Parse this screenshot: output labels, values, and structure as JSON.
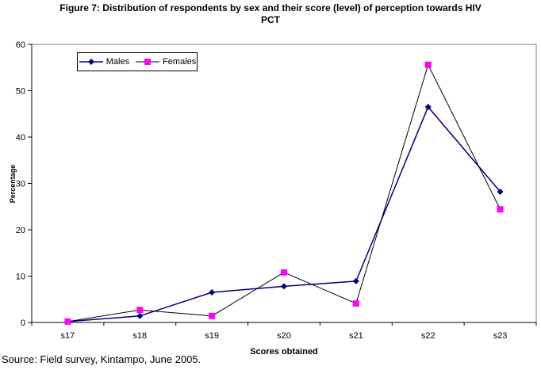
{
  "header": {
    "title_line1": "Figure 7: Distribution of respondents by sex and their score (level) of perception towards HIV",
    "title_line2": "PCT"
  },
  "legend": {
    "males_label": "Males",
    "females_label": "Females"
  },
  "axes": {
    "y_title": "Percentage",
    "x_title": "Scores obtained"
  },
  "footer": {
    "source": "Source: Field survey, Kintampo, June 2005."
  },
  "colors": {
    "male_line": "#000080",
    "male_marker": "#000080",
    "female_line": "#000000",
    "female_marker": "#FF00FF",
    "plot_border": "#808080",
    "axis": "#000000",
    "background": "#FFFFFF"
  },
  "chart_data": {
    "type": "line",
    "title": "Figure 7: Distribution of respondents by sex and their score (level) of perception towards HIV PCT",
    "xlabel": "Scores obtained",
    "ylabel": "Percentage",
    "categories": [
      "s17",
      "s18",
      "s19",
      "s20",
      "s21",
      "s22",
      "s23"
    ],
    "series": [
      {
        "name": "Males",
        "values": [
          0.2,
          1.4,
          6.5,
          7.8,
          8.9,
          46.5,
          28.2
        ],
        "line_color": "#000080",
        "marker_color": "#000080",
        "marker": "diamond",
        "line_width": 1.5
      },
      {
        "name": "Females",
        "values": [
          0.2,
          2.7,
          1.4,
          10.8,
          4.1,
          55.6,
          24.4
        ],
        "line_color": "#000000",
        "marker_color": "#FF00FF",
        "marker": "square",
        "line_width": 1
      }
    ],
    "ylim": [
      0,
      60
    ],
    "yticks": [
      0,
      10,
      20,
      30,
      40,
      50,
      60
    ],
    "grid": false,
    "legend_position": "top-left-inside"
  }
}
